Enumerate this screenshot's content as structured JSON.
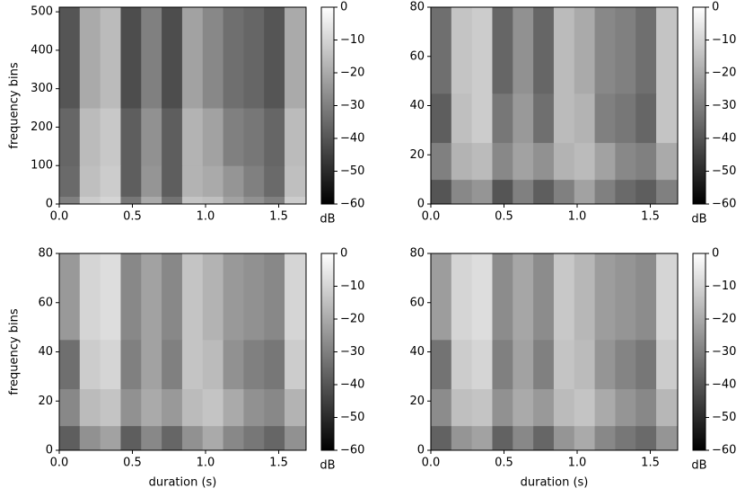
{
  "chart_data": [
    {
      "type": "heatmap",
      "ylabel": "frequency bins",
      "cmap": "gray",
      "xlim": [
        0,
        1.687
      ],
      "xticks": [
        {
          "value": 0,
          "label": "0.0"
        },
        {
          "value": 0.5,
          "label": "0.5"
        },
        {
          "value": 1,
          "label": "1.0"
        },
        {
          "value": 1.5,
          "label": "1.5"
        }
      ],
      "ylim": [
        0,
        512
      ],
      "yticks": [
        0,
        100,
        200,
        300,
        400,
        500
      ],
      "xbins": [
        0,
        0.14,
        0.28,
        0.42,
        0.56,
        0.7,
        0.84,
        0.98,
        1.12,
        1.26,
        1.4,
        1.54,
        1.687
      ],
      "ybins": [
        0,
        20,
        100,
        250,
        512
      ],
      "values": [
        [
          -30,
          -12,
          -10,
          -32,
          -20,
          -33,
          -14,
          -15,
          -22,
          -26,
          -30,
          -12
        ],
        [
          -35,
          -15,
          -12,
          -38,
          -25,
          -38,
          -18,
          -20,
          -25,
          -30,
          -35,
          -15
        ],
        [
          -36,
          -16,
          -13,
          -38,
          -26,
          -38,
          -18,
          -22,
          -30,
          -32,
          -36,
          -16
        ],
        [
          -40,
          -20,
          -16,
          -42,
          -30,
          -42,
          -22,
          -28,
          -34,
          -36,
          -40,
          -20
        ]
      ],
      "colorbar": {
        "lim": [
          -60,
          0
        ],
        "ticks": [
          {
            "value": 0,
            "label": "0"
          },
          {
            "value": -10,
            "label": "−10"
          },
          {
            "value": -20,
            "label": "−20"
          },
          {
            "value": -30,
            "label": "−30"
          },
          {
            "value": -40,
            "label": "−40"
          },
          {
            "value": -50,
            "label": "−50"
          },
          {
            "value": -60,
            "label": "−60"
          }
        ],
        "label": "dB"
      }
    },
    {
      "type": "heatmap",
      "cmap": "gray",
      "xlim": [
        0,
        1.687
      ],
      "xticks": [
        {
          "value": 0,
          "label": "0.0"
        },
        {
          "value": 0.5,
          "label": "0.5"
        },
        {
          "value": 1,
          "label": "1.0"
        },
        {
          "value": 1.5,
          "label": "1.5"
        }
      ],
      "ylim": [
        0,
        80
      ],
      "yticks": [
        0,
        20,
        40,
        60,
        80
      ],
      "xbins": [
        0,
        0.14,
        0.28,
        0.42,
        0.56,
        0.7,
        0.84,
        0.98,
        1.12,
        1.26,
        1.4,
        1.54,
        1.687
      ],
      "ybins": [
        0,
        10,
        25,
        45,
        80
      ],
      "values": [
        [
          -40,
          -28,
          -25,
          -40,
          -30,
          -38,
          -30,
          -22,
          -30,
          -35,
          -38,
          -30
        ],
        [
          -30,
          -18,
          -16,
          -28,
          -22,
          -26,
          -18,
          -16,
          -22,
          -28,
          -30,
          -20
        ],
        [
          -38,
          -15,
          -12,
          -32,
          -24,
          -34,
          -16,
          -18,
          -30,
          -32,
          -36,
          -14
        ],
        [
          -34,
          -14,
          -12,
          -36,
          -26,
          -36,
          -16,
          -20,
          -28,
          -30,
          -34,
          -14
        ]
      ],
      "colorbar": {
        "lim": [
          -60,
          0
        ],
        "ticks": [
          {
            "value": 0,
            "label": "0"
          },
          {
            "value": -10,
            "label": "−10"
          },
          {
            "value": -20,
            "label": "−20"
          },
          {
            "value": -30,
            "label": "−30"
          },
          {
            "value": -40,
            "label": "−40"
          },
          {
            "value": -50,
            "label": "−50"
          },
          {
            "value": -60,
            "label": "−60"
          }
        ],
        "label": "dB"
      }
    },
    {
      "type": "heatmap",
      "ylabel": "frequency bins",
      "xlabel": "duration (s)",
      "cmap": "gray",
      "xlim": [
        0,
        1.687
      ],
      "xticks": [
        {
          "value": 0,
          "label": "0.0"
        },
        {
          "value": 0.5,
          "label": "0.5"
        },
        {
          "value": 1,
          "label": "1.0"
        },
        {
          "value": 1.5,
          "label": "1.5"
        }
      ],
      "ylim": [
        0,
        80
      ],
      "yticks": [
        0,
        20,
        40,
        60,
        80
      ],
      "xbins": [
        0,
        0.14,
        0.28,
        0.42,
        0.56,
        0.7,
        0.84,
        0.98,
        1.12,
        1.26,
        1.4,
        1.54,
        1.687
      ],
      "ybins": [
        0,
        10,
        25,
        45,
        80
      ],
      "values": [
        [
          -38,
          -26,
          -22,
          -38,
          -28,
          -36,
          -26,
          -20,
          -28,
          -32,
          -36,
          -26
        ],
        [
          -28,
          -16,
          -14,
          -26,
          -20,
          -24,
          -16,
          -14,
          -20,
          -26,
          -28,
          -18
        ],
        [
          -34,
          -12,
          -10,
          -30,
          -22,
          -30,
          -14,
          -16,
          -26,
          -30,
          -32,
          -12
        ],
        [
          -24,
          -10,
          -8,
          -28,
          -22,
          -28,
          -14,
          -18,
          -24,
          -26,
          -28,
          -10
        ]
      ],
      "colorbar": {
        "lim": [
          -60,
          0
        ],
        "ticks": [
          {
            "value": 0,
            "label": "0"
          },
          {
            "value": -10,
            "label": "−10"
          },
          {
            "value": -20,
            "label": "−20"
          },
          {
            "value": -30,
            "label": "−30"
          },
          {
            "value": -40,
            "label": "−40"
          },
          {
            "value": -50,
            "label": "−50"
          },
          {
            "value": -60,
            "label": "−60"
          }
        ],
        "label": "dB"
      }
    },
    {
      "type": "heatmap",
      "xlabel": "duration (s)",
      "cmap": "gray",
      "xlim": [
        0,
        1.687
      ],
      "xticks": [
        {
          "value": 0,
          "label": "0.0"
        },
        {
          "value": 0.5,
          "label": "0.5"
        },
        {
          "value": 1,
          "label": "1.0"
        },
        {
          "value": 1.5,
          "label": "1.5"
        }
      ],
      "ylim": [
        0,
        80
      ],
      "yticks": [
        0,
        20,
        40,
        60,
        80
      ],
      "xbins": [
        0,
        0.14,
        0.28,
        0.42,
        0.56,
        0.7,
        0.84,
        0.98,
        1.12,
        1.26,
        1.4,
        1.54,
        1.687
      ],
      "ybins": [
        0,
        10,
        25,
        45,
        80
      ],
      "values": [
        [
          -37,
          -25,
          -22,
          -37,
          -28,
          -36,
          -25,
          -20,
          -28,
          -32,
          -35,
          -25
        ],
        [
          -27,
          -15,
          -14,
          -26,
          -20,
          -24,
          -16,
          -14,
          -20,
          -25,
          -28,
          -17
        ],
        [
          -33,
          -12,
          -10,
          -30,
          -22,
          -30,
          -14,
          -16,
          -25,
          -29,
          -32,
          -12
        ],
        [
          -23,
          -10,
          -8,
          -27,
          -21,
          -27,
          -13,
          -17,
          -23,
          -25,
          -27,
          -10
        ]
      ],
      "colorbar": {
        "lim": [
          -60,
          0
        ],
        "ticks": [
          {
            "value": 0,
            "label": "0"
          },
          {
            "value": -10,
            "label": "−10"
          },
          {
            "value": -20,
            "label": "−20"
          },
          {
            "value": -30,
            "label": "−30"
          },
          {
            "value": -40,
            "label": "−40"
          },
          {
            "value": -50,
            "label": "−50"
          },
          {
            "value": -60,
            "label": "−60"
          }
        ],
        "label": "dB"
      }
    }
  ]
}
